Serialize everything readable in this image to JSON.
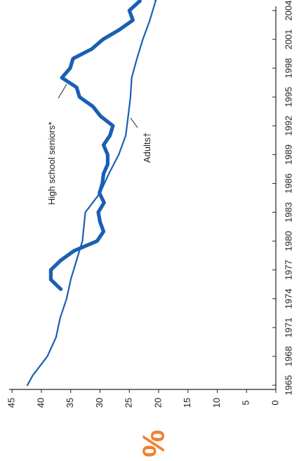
{
  "chart_data": {
    "type": "line",
    "title": "",
    "xlabel": "",
    "ylabel": "%",
    "orientation": "rotated-90-clockwise",
    "xlim": [
      1965,
      2006
    ],
    "ylim": [
      0,
      45
    ],
    "x_ticks": [
      "1965",
      "1968",
      "1971",
      "1974",
      "1977",
      "1980",
      "1983",
      "1986",
      "1989",
      "1992",
      "1995",
      "1998",
      "2001",
      "2004"
    ],
    "y_ticks": [
      "0",
      "5",
      "10",
      "15",
      "20",
      "25",
      "30",
      "35",
      "40",
      "45"
    ],
    "grid": false,
    "legend": "none",
    "annotations": [
      "High school seniors*",
      "Adults†"
    ],
    "series": [
      {
        "name": "High school seniors*",
        "color": "#1a5fb4",
        "x": [
          1975,
          1976,
          1977,
          1978,
          1979,
          1980,
          1981,
          1982,
          1983,
          1984,
          1985,
          1986,
          1987,
          1988,
          1989,
          1990,
          1991,
          1992,
          1993,
          1994,
          1995,
          1996,
          1997,
          1998,
          1999,
          2000,
          2001,
          2002,
          2003,
          2004,
          2005
        ],
        "y": [
          36.7,
          38.4,
          38.4,
          36.7,
          34.4,
          30.5,
          29.4,
          30.0,
          30.3,
          29.3,
          30.1,
          29.6,
          29.4,
          28.7,
          28.7,
          29.4,
          28.3,
          27.8,
          29.9,
          31.2,
          33.5,
          34.0,
          36.5,
          35.1,
          34.6,
          31.4,
          29.5,
          26.7,
          24.4,
          25.0,
          23.2
        ]
      },
      {
        "name": "Adults†",
        "color": "#1a5fb4",
        "x": [
          1965,
          1966,
          1968,
          1970,
          1972,
          1974,
          1976,
          1978,
          1980,
          1983,
          1985,
          1987,
          1989,
          1991,
          1993,
          1995,
          1997,
          1999,
          2001,
          2003,
          2005
        ],
        "y": [
          42.4,
          41.5,
          39.0,
          37.5,
          36.8,
          35.7,
          35.0,
          34.0,
          33.0,
          32.5,
          30.0,
          28.5,
          26.8,
          25.6,
          25.2,
          24.8,
          24.6,
          23.7,
          22.7,
          21.5,
          20.5
        ],
        "projected_tail": true
      }
    ]
  },
  "icons": {
    "unit_color": "#f08030"
  }
}
